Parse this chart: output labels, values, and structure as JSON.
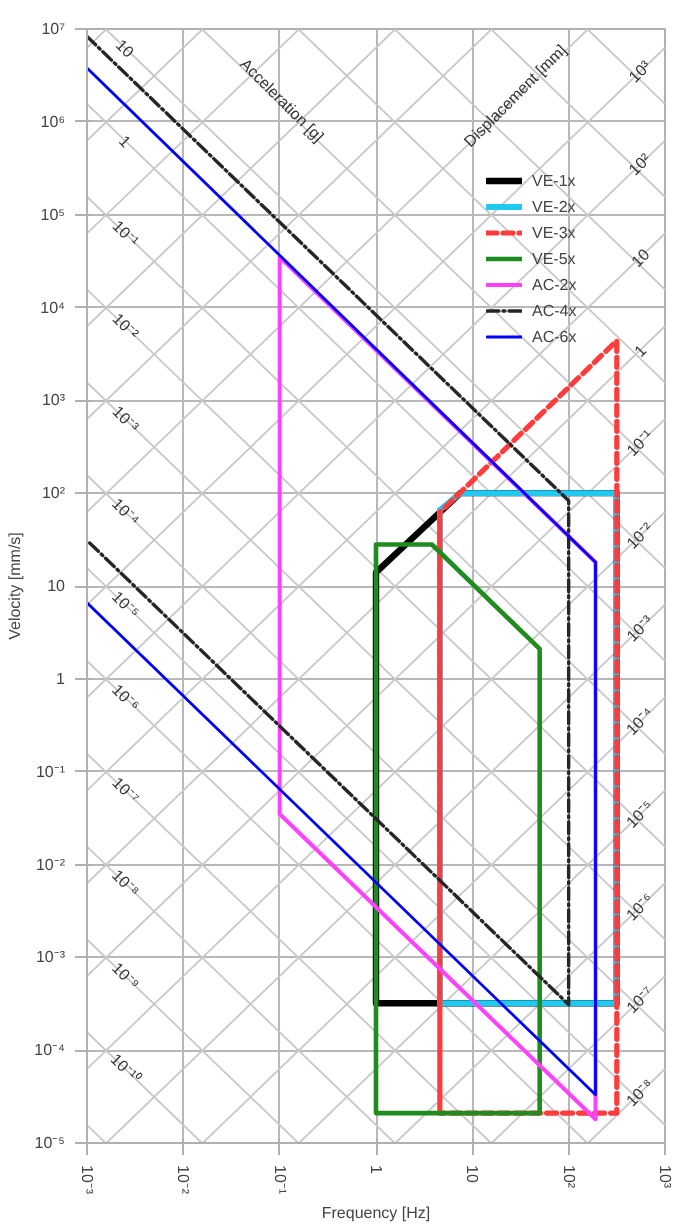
{
  "chart_data": {
    "type": "line",
    "xlabel": "Frequency [Hz]",
    "ylabel": "Velocity [mm/s]",
    "log": "xy",
    "grid": true,
    "legend": "top right",
    "xlim": [
      0.001,
      1000
    ],
    "ylim": [
      1e-05,
      10000000
    ],
    "xticks": [
      {
        "value": 0.001,
        "label": "10⁻³"
      },
      {
        "value": 0.01,
        "label": "10⁻²"
      },
      {
        "value": 0.1,
        "label": "10⁻¹"
      },
      1,
      10,
      {
        "value": 100,
        "label": "10²"
      },
      {
        "value": 1000,
        "label": "10³"
      }
    ],
    "yticks": [
      {
        "value": 1e-05,
        "label": "10⁻⁵"
      },
      {
        "value": 0.0001,
        "label": "10⁻⁴"
      },
      {
        "value": 0.001,
        "label": "10⁻³"
      },
      {
        "value": 0.01,
        "label": "10⁻²"
      },
      {
        "value": 0.1,
        "label": "10⁻¹"
      },
      1,
      10,
      {
        "value": 100,
        "label": "10²"
      },
      {
        "value": 1000,
        "label": "10³"
      },
      {
        "value": 10000,
        "label": "10⁴"
      },
      {
        "value": 100000,
        "label": "10⁵"
      },
      {
        "value": 1000000,
        "label": "10⁶"
      },
      {
        "value": 10000000,
        "label": "10⁷"
      }
    ],
    "series": [
      {
        "color": "#c8c8c8",
        "x": [
          0.001,
          0.00156
        ],
        "values": [
          1.56e-05,
          1e-05
        ]
      },
      {
        "color": "#c8c8c8",
        "x": [
          0.001,
          0.0156
        ],
        "values": [
          0.000156,
          1e-05
        ]
      },
      {
        "color": "#c8c8c8",
        "x": [
          0.001,
          0.156
        ],
        "values": [
          0.00156,
          1e-05
        ]
      },
      {
        "color": "#c8c8c8",
        "x": [
          0.001,
          1.56
        ],
        "values": [
          0.0156,
          1e-05
        ]
      },
      {
        "color": "#c8c8c8",
        "x": [
          0.001,
          15.6
        ],
        "values": [
          0.156,
          1e-05
        ]
      },
      {
        "color": "#c8c8c8",
        "x": [
          0.001,
          156
        ],
        "values": [
          1.56,
          1e-05
        ]
      },
      {
        "color": "#c8c8c8",
        "x": [
          0.001,
          1000
        ],
        "values": [
          15.6,
          1.56e-05
        ]
      },
      {
        "color": "#c8c8c8",
        "x": [
          0.001,
          1000
        ],
        "values": [
          156,
          0.000156
        ]
      },
      {
        "color": "#c8c8c8",
        "x": [
          0.001,
          1000
        ],
        "values": [
          1560,
          0.00156
        ]
      },
      {
        "color": "#c8c8c8",
        "x": [
          0.001,
          1000
        ],
        "values": [
          15600,
          0.0156
        ]
      },
      {
        "color": "#c8c8c8",
        "x": [
          0.001,
          1000
        ],
        "values": [
          156000,
          0.156
        ]
      },
      {
        "color": "#c8c8c8",
        "x": [
          0.001,
          1000
        ],
        "values": [
          1560000,
          1.56
        ]
      },
      {
        "color": "#c8c8c8",
        "x": [
          0.00156,
          1000
        ],
        "values": [
          10000000,
          15.6
        ]
      },
      {
        "color": "#c8c8c8",
        "x": [
          0.0156,
          1000
        ],
        "values": [
          10000000,
          156
        ]
      },
      {
        "color": "#c8c8c8",
        "x": [
          0.156,
          1000
        ],
        "values": [
          10000000,
          1560
        ]
      },
      {
        "color": "#c8c8c8",
        "x": [
          1.56,
          1000
        ],
        "values": [
          10000000,
          15600
        ]
      },
      {
        "color": "#c8c8c8",
        "x": [
          15.6,
          1000
        ],
        "values": [
          10000000,
          156000
        ]
      },
      {
        "color": "#c8c8c8",
        "x": [
          156,
          1000
        ],
        "values": [
          10000000,
          1560000
        ]
      },
      {
        "color": "#c8c8c8",
        "x": [
          159,
          1000
        ],
        "values": [
          1e-05,
          6.28e-05
        ]
      },
      {
        "color": "#c8c8c8",
        "x": [
          15.9,
          1000
        ],
        "values": [
          1e-05,
          0.000628
        ]
      },
      {
        "color": "#c8c8c8",
        "x": [
          1.59,
          1000
        ],
        "values": [
          1e-05,
          0.00628
        ]
      },
      {
        "color": "#c8c8c8",
        "x": [
          0.159,
          1000
        ],
        "values": [
          1e-05,
          0.0628
        ]
      },
      {
        "color": "#c8c8c8",
        "x": [
          0.0159,
          1000
        ],
        "values": [
          1e-05,
          0.628
        ]
      },
      {
        "color": "#c8c8c8",
        "x": [
          0.00159,
          1000
        ],
        "values": [
          1e-05,
          6.28
        ]
      },
      {
        "color": "#c8c8c8",
        "x": [
          0.001,
          1000
        ],
        "values": [
          6.28e-05,
          62.8
        ]
      },
      {
        "color": "#c8c8c8",
        "x": [
          0.001,
          1000
        ],
        "values": [
          0.000628,
          628
        ]
      },
      {
        "color": "#c8c8c8",
        "x": [
          0.001,
          1000
        ],
        "values": [
          0.00628,
          6280
        ]
      },
      {
        "color": "#c8c8c8",
        "x": [
          0.001,
          1000
        ],
        "values": [
          0.0628,
          62800
        ]
      },
      {
        "color": "#c8c8c8",
        "x": [
          0.001,
          1000
        ],
        "values": [
          0.628,
          628000
        ]
      },
      {
        "color": "#c8c8c8",
        "x": [
          0.001,
          1000
        ],
        "values": [
          6.28,
          6280000
        ]
      },
      {
        "color": "#c8c8c8",
        "x": [
          0.001,
          159
        ],
        "values": [
          62.8,
          10000000
        ]
      },
      {
        "color": "#c8c8c8",
        "x": [
          0.001,
          15.9
        ],
        "values": [
          628,
          10000000
        ]
      },
      {
        "color": "#c8c8c8",
        "x": [
          0.001,
          1.59
        ],
        "values": [
          6280,
          10000000
        ]
      },
      {
        "color": "#c8c8c8",
        "x": [
          0.001,
          0.159
        ],
        "values": [
          62800,
          10000000
        ]
      },
      {
        "color": "#c8c8c8",
        "x": [
          0.001,
          0.0159
        ],
        "values": [
          628000,
          10000000
        ]
      },
      {
        "color": "#c8c8c8",
        "x": [
          0.001,
          0.00159
        ],
        "values": [
          6280000,
          10000000
        ]
      },
      {
        "name": "VE-1x",
        "color": "#000000",
        "line_style": "solid",
        "x": [
          1,
          1,
          7.5,
          316,
          316,
          1,
          1
        ],
        "values": [
          0.00032,
          14,
          100,
          100,
          0.00032,
          0.00032,
          14
        ]
      },
      {
        "name": "VE-2x",
        "color": "#22c8f0",
        "line_style": "solid",
        "x": [
          4.6,
          4.6,
          7.5,
          316,
          316,
          4.6,
          4.6
        ],
        "values": [
          0.00032,
          66,
          100,
          100,
          0.00032,
          0.00032,
          66
        ]
      },
      {
        "name": "VE-3x",
        "color": "#ff3c3c",
        "line_style": "dashed",
        "x": [
          4.6,
          4.6,
          316,
          316,
          4.6,
          4.6
        ],
        "values": [
          2.1e-05,
          62,
          4400,
          2.1e-05,
          2.1e-05,
          62
        ]
      },
      {
        "name": "VE-5x",
        "color": "#1e8c1e",
        "line_style": "solid",
        "x": [
          1,
          1,
          3.8,
          50,
          50,
          1,
          1
        ],
        "values": [
          2.1e-05,
          28,
          28,
          2.1,
          2.1e-05,
          2.1e-05,
          28
        ]
      },
      {
        "name": "AC-2x",
        "color": "#ff40ff",
        "line_style": "solid",
        "x": [
          0.1,
          190,
          190,
          0.1,
          0.1,
          190
        ],
        "values": [
          35000,
          18,
          1.8e-05,
          0.035,
          35000,
          18
        ]
      },
      {
        "name": "AC-4x",
        "color": "#262626",
        "line_style": "dashdot",
        "x": [
          0.001,
          100,
          100,
          0.001
        ],
        "values": [
          8300000,
          83,
          0.00031,
          31
        ]
      },
      {
        "name": "AC-6x",
        "color": "#0000ff",
        "line_style": "solid",
        "x": [
          0.001,
          190,
          190,
          0.001
        ],
        "values": [
          3800000,
          18,
          3.3e-05,
          6.6
        ]
      }
    ],
    "annotations": [
      {
        "text": "Acceleration [g]",
        "x": 0.105,
        "y": 1700000
      },
      {
        "text": "Displacement [mm]",
        "x": 28,
        "y": 1900000
      },
      {
        "text": "10",
        "x": 0.0025,
        "y": 6240000
      },
      {
        "text": "1",
        "x": 0.0025,
        "y": 624000
      },
      {
        "text": "10⁻¹",
        "x": 0.0025,
        "y": 62400
      },
      {
        "text": "10⁻²",
        "x": 0.0025,
        "y": 6240
      },
      {
        "text": "10⁻³",
        "x": 0.0025,
        "y": 624
      },
      {
        "text": "10⁻⁴",
        "x": 0.0025,
        "y": 62.4
      },
      {
        "text": "10⁻⁵",
        "x": 0.0025,
        "y": 6.24
      },
      {
        "text": "10⁻⁶",
        "x": 0.0025,
        "y": 0.624
      },
      {
        "text": "10⁻⁷",
        "x": 0.0025,
        "y": 0.0624
      },
      {
        "text": "10⁻⁸",
        "x": 0.0025,
        "y": 0.00624
      },
      {
        "text": "10⁻⁹",
        "x": 0.0025,
        "y": 0.000624
      },
      {
        "text": "10⁻¹⁰",
        "x": 0.0025,
        "y": 6.24e-05
      },
      {
        "text": "10³",
        "x": 550,
        "y": 3460000
      },
      {
        "text": "10²",
        "x": 550,
        "y": 346000
      },
      {
        "text": "10",
        "x": 550,
        "y": 34600
      },
      {
        "text": "1",
        "x": 550,
        "y": 3460
      },
      {
        "text": "10⁻¹",
        "x": 550,
        "y": 346
      },
      {
        "text": "10⁻²",
        "x": 550,
        "y": 34.6
      },
      {
        "text": "10⁻³",
        "x": 550,
        "y": 3.46
      },
      {
        "text": "10⁻⁴",
        "x": 550,
        "y": 0.346
      },
      {
        "text": "10⁻⁵",
        "x": 550,
        "y": 0.0346
      },
      {
        "text": "10⁻⁶",
        "x": 550,
        "y": 0.00346
      },
      {
        "text": "10⁻⁷",
        "x": 550,
        "y": 0.000346
      },
      {
        "text": "10⁻⁸",
        "x": 550,
        "y": 3.46e-05
      }
    ]
  }
}
